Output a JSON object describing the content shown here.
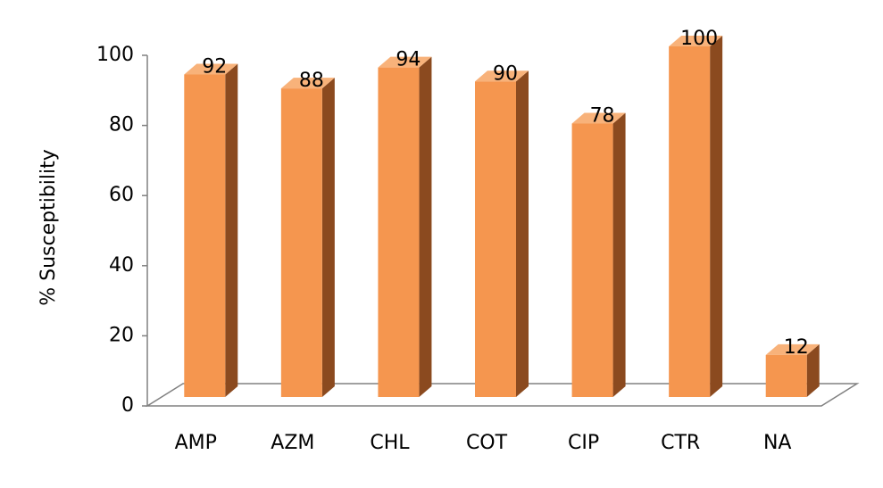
{
  "chart_data": {
    "type": "bar",
    "y_label": "% Susceptibility",
    "categories": [
      "AMP",
      "AZM",
      "CHL",
      "COT",
      "CIP",
      "CTR",
      "NA"
    ],
    "values": [
      92,
      88,
      94,
      90,
      78,
      100,
      12
    ],
    "color": "#f5964f",
    "ylim": [
      0,
      100
    ],
    "yticks": [
      0,
      20,
      40,
      60,
      80,
      100
    ]
  }
}
